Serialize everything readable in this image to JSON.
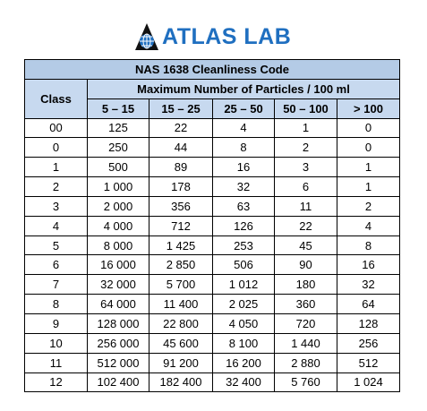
{
  "header": {
    "logo_text": "ATLAS LAB"
  },
  "table": {
    "title": "NAS 1638 Cleanliness Code",
    "row_header": "Class",
    "group_header": "Maximum Number of Particles / 100 ml",
    "columns": [
      "5 – 15",
      "15 – 25",
      "25 – 50",
      "50 – 100",
      "> 100"
    ],
    "rows": [
      [
        "00",
        "125",
        "22",
        "4",
        "1",
        "0"
      ],
      [
        "0",
        "250",
        "44",
        "8",
        "2",
        "0"
      ],
      [
        "1",
        "500",
        "89",
        "16",
        "3",
        "1"
      ],
      [
        "2",
        "1 000",
        "178",
        "32",
        "6",
        "1"
      ],
      [
        "3",
        "2 000",
        "356",
        "63",
        "11",
        "2"
      ],
      [
        "4",
        "4 000",
        "712",
        "126",
        "22",
        "4"
      ],
      [
        "5",
        "8 000",
        "1 425",
        "253",
        "45",
        "8"
      ],
      [
        "6",
        "16 000",
        "2 850",
        "506",
        "90",
        "16"
      ],
      [
        "7",
        "32 000",
        "5 700",
        "1 012",
        "180",
        "32"
      ],
      [
        "8",
        "64 000",
        "11 400",
        "2 025",
        "360",
        "64"
      ],
      [
        "9",
        "128 000",
        "22 800",
        "4 050",
        "720",
        "128"
      ],
      [
        "10",
        "256 000",
        "45 600",
        "8 100",
        "1 440",
        "256"
      ],
      [
        "11",
        "512 000",
        "91 200",
        "16 200",
        "2 880",
        "512"
      ],
      [
        "12",
        "102 400",
        "182 400",
        "32 400",
        "5 760",
        "1 024"
      ]
    ]
  }
}
